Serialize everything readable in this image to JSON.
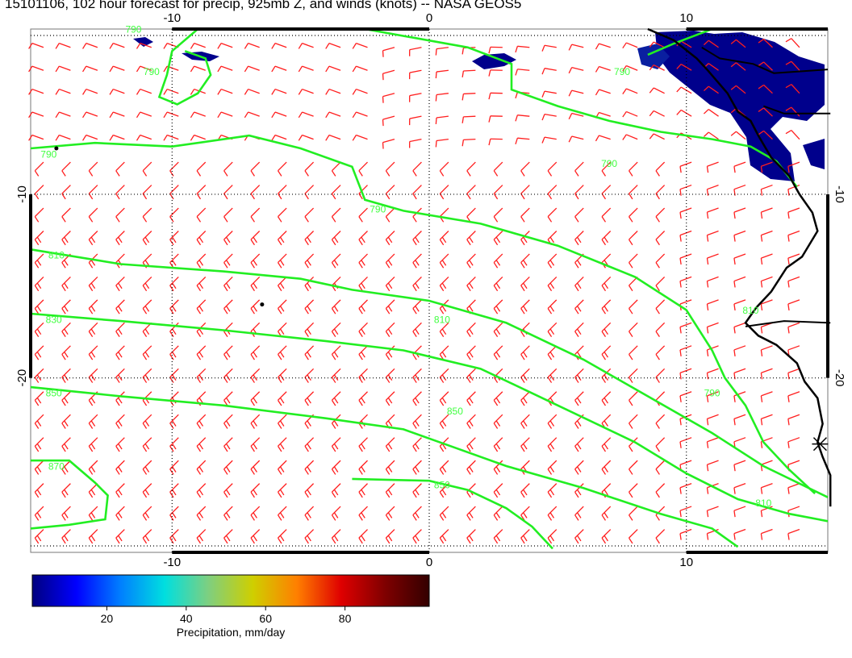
{
  "title": "15101106, 102 hour forecast for precip, 925mb Z, and winds (knots) -- NASA GEOS5",
  "axes": {
    "x_ticks": [
      "-10",
      "0",
      "10"
    ],
    "y_ticks": [
      "-10",
      "-20"
    ]
  },
  "contours": {
    "color": "#22ee22",
    "units": "925mb geopotential height (m)",
    "levels": [
      "790",
      "810",
      "830",
      "850",
      "870"
    ],
    "labels": [
      {
        "text": "790",
        "x": -11.5,
        "y": -1.2
      },
      {
        "text": "790",
        "x": -10.8,
        "y": -3.5
      },
      {
        "text": "790",
        "x": -14.8,
        "y": -8.0
      },
      {
        "text": "790",
        "x": 7.0,
        "y": -8.5
      },
      {
        "text": "790",
        "x": 7.5,
        "y": -3.5
      },
      {
        "text": "790",
        "x": -2.0,
        "y": -11.0
      },
      {
        "text": "790",
        "x": 11.0,
        "y": -21.0
      },
      {
        "text": "810",
        "x": -14.5,
        "y": -13.5
      },
      {
        "text": "810",
        "x": 0.5,
        "y": -17.0
      },
      {
        "text": "810",
        "x": 13.0,
        "y": -27.0
      },
      {
        "text": "810",
        "x": 12.5,
        "y": -16.5
      },
      {
        "text": "830",
        "x": -14.6,
        "y": -17.0
      },
      {
        "text": "850",
        "x": -14.6,
        "y": -21.0
      },
      {
        "text": "850",
        "x": 1.0,
        "y": -22.0
      },
      {
        "text": "850",
        "x": 0.5,
        "y": -26.0
      },
      {
        "text": "870",
        "x": -14.5,
        "y": -25.0
      }
    ]
  },
  "colorbar": {
    "label": "Precipitation, mm/day",
    "ticks": [
      "20",
      "40",
      "60",
      "80"
    ],
    "range": [
      0,
      100
    ],
    "colors": [
      "#00007f",
      "#0000ff",
      "#007fff",
      "#00dfdf",
      "#7fcf7f",
      "#cfcf00",
      "#ff7f00",
      "#df0000",
      "#7f0000",
      "#330000"
    ]
  },
  "winds": {
    "color": "#ff1e1e",
    "units": "knots"
  },
  "precip": {
    "color": "#00008c"
  },
  "coastline": {
    "color": "#000000"
  }
}
